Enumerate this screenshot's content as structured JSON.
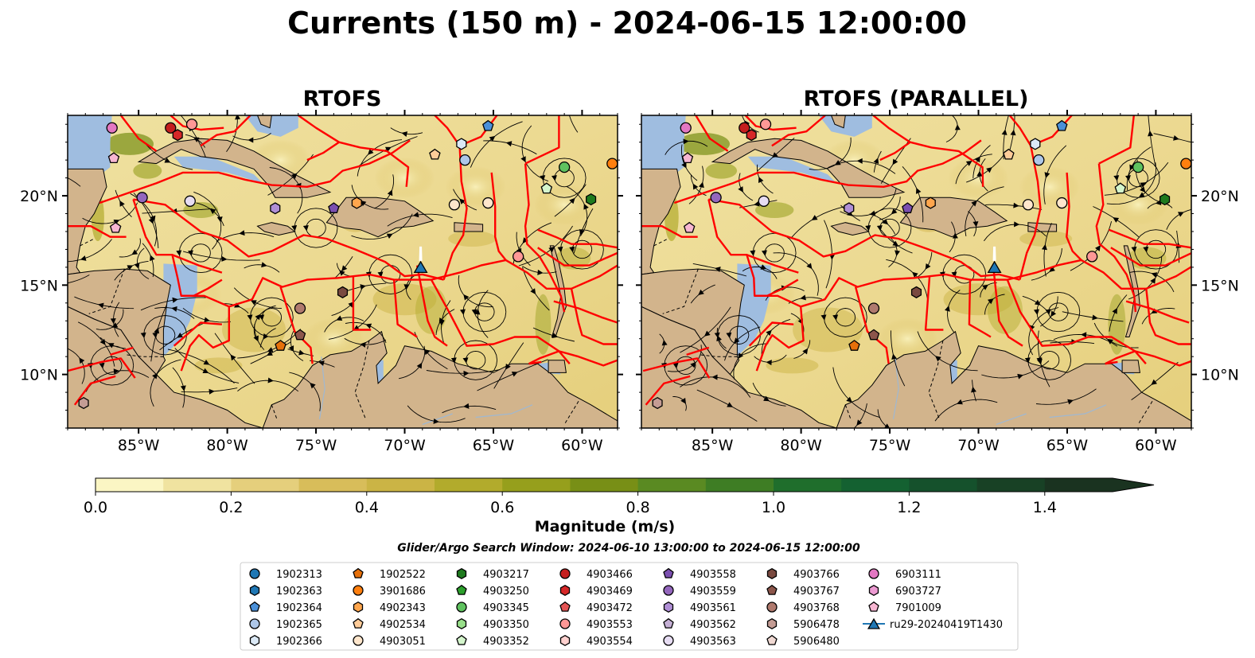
{
  "title": "Currents (150 m) - 2024-06-15 12:00:00",
  "panels": [
    {
      "id": "rtofs",
      "title": "RTOFS"
    },
    {
      "id": "parallel",
      "title": "RTOFS (PARALLEL)"
    }
  ],
  "axes": {
    "xlim": [
      -89,
      -58
    ],
    "ylim": [
      7,
      24.5
    ],
    "x_ticks": [
      {
        "value": -85,
        "label": "85°W"
      },
      {
        "value": -80,
        "label": "80°W"
      },
      {
        "value": -75,
        "label": "75°W"
      },
      {
        "value": -70,
        "label": "70°W"
      },
      {
        "value": -65,
        "label": "65°W"
      },
      {
        "value": -60,
        "label": "60°W"
      }
    ],
    "y_ticks": [
      {
        "value": 10,
        "label": "10°N"
      },
      {
        "value": 15,
        "label": "15°N"
      },
      {
        "value": 20,
        "label": "20°N"
      }
    ]
  },
  "colorbar": {
    "label": "Magnitude (m/s)",
    "min": 0.0,
    "max": 1.5,
    "extend": "max",
    "ticks": [
      "0.0",
      "0.2",
      "0.4",
      "0.6",
      "0.8",
      "1.0",
      "1.2",
      "1.4"
    ],
    "colors": [
      "#fbf6c4",
      "#f0e3a0",
      "#e5cf7c",
      "#d8bd5a",
      "#cbb445",
      "#b2ab2c",
      "#969f1c",
      "#788f16",
      "#5a8a22",
      "#3e7d24",
      "#1f6e2c",
      "#146131",
      "#15512c",
      "#184125",
      "#1a3320"
    ]
  },
  "colors": {
    "land": "#d2b48c",
    "water_shallow": "#9fbde0",
    "boundary": "#ff0000",
    "river": "#9fb8d2",
    "streamline": "#000000"
  },
  "search_window": "Glider/Argo Search Window: 2024-06-10 13:00:00 to 2024-06-15 12:00:00",
  "legend": [
    {
      "label": "1902313",
      "marker": "circle",
      "color": "#1f77b4"
    },
    {
      "label": "1902363",
      "marker": "hexagon",
      "color": "#1f77b4"
    },
    {
      "label": "1902364",
      "marker": "pentagon",
      "color": "#4a90d9"
    },
    {
      "label": "1902365",
      "marker": "circle",
      "color": "#aec7e8"
    },
    {
      "label": "1902366",
      "marker": "hexagon",
      "color": "#dbe9f6"
    },
    {
      "label": "1902522",
      "marker": "pentagon",
      "color": "#e6700a"
    },
    {
      "label": "3901686",
      "marker": "circle",
      "color": "#ff7f0e"
    },
    {
      "label": "4902343",
      "marker": "hexagon",
      "color": "#ffa64d"
    },
    {
      "label": "4902534",
      "marker": "pentagon",
      "color": "#ffcc99"
    },
    {
      "label": "4903051",
      "marker": "circle",
      "color": "#ffe6cc"
    },
    {
      "label": "4903217",
      "marker": "hexagon",
      "color": "#1e7a1e"
    },
    {
      "label": "4903250",
      "marker": "pentagon",
      "color": "#2ca02c"
    },
    {
      "label": "4903345",
      "marker": "circle",
      "color": "#5fc25f"
    },
    {
      "label": "4903350",
      "marker": "hexagon",
      "color": "#98df8a"
    },
    {
      "label": "4903352",
      "marker": "pentagon",
      "color": "#d4f5cc"
    },
    {
      "label": "4903466",
      "marker": "circle",
      "color": "#c41e1e"
    },
    {
      "label": "4903469",
      "marker": "hexagon",
      "color": "#d62728"
    },
    {
      "label": "4903472",
      "marker": "pentagon",
      "color": "#e35454"
    },
    {
      "label": "4903553",
      "marker": "circle",
      "color": "#ff9896"
    },
    {
      "label": "4903554",
      "marker": "hexagon",
      "color": "#ffd1cf"
    },
    {
      "label": "4903558",
      "marker": "pentagon",
      "color": "#7b4fb0"
    },
    {
      "label": "4903559",
      "marker": "circle",
      "color": "#9467bd"
    },
    {
      "label": "4903561",
      "marker": "hexagon",
      "color": "#b08fd6"
    },
    {
      "label": "4903562",
      "marker": "pentagon",
      "color": "#c5b0d5"
    },
    {
      "label": "4903563",
      "marker": "circle",
      "color": "#e6dcf2"
    },
    {
      "label": "4903766",
      "marker": "hexagon",
      "color": "#7a4a40"
    },
    {
      "label": "4903767",
      "marker": "pentagon",
      "color": "#8c564b"
    },
    {
      "label": "4903768",
      "marker": "circle",
      "color": "#b07a6e"
    },
    {
      "label": "5906478",
      "marker": "hexagon",
      "color": "#c49c94"
    },
    {
      "label": "5906480",
      "marker": "pentagon",
      "color": "#f0d9d3"
    },
    {
      "label": "6903111",
      "marker": "circle",
      "color": "#e377c2"
    },
    {
      "label": "6903727",
      "marker": "hexagon",
      "color": "#ec9ad2"
    },
    {
      "label": "7901009",
      "marker": "pentagon",
      "color": "#f7b6d2"
    },
    {
      "label": "ru29-20240419T1430",
      "marker": "triangle",
      "color": "#1f77b4"
    }
  ],
  "chart_data": {
    "type": "scatter",
    "title": "Currents (150 m) - 2024-06-15 12:00:00",
    "xlabel": "",
    "ylabel": "",
    "xlim": [
      -89,
      -58
    ],
    "ylim": [
      7,
      24.5
    ],
    "series": [
      {
        "name": "1902364",
        "points": [
          {
            "x": -65.3,
            "y": 23.9
          }
        ]
      },
      {
        "name": "1902365",
        "points": [
          {
            "x": -66.6,
            "y": 22.0
          }
        ]
      },
      {
        "name": "1902366",
        "points": [
          {
            "x": -66.8,
            "y": 22.9
          }
        ]
      },
      {
        "name": "3901686",
        "points": [
          {
            "x": -58.3,
            "y": 21.8
          }
        ]
      },
      {
        "name": "4902534",
        "points": [
          {
            "x": -68.3,
            "y": 22.3
          }
        ]
      },
      {
        "name": "4903051",
        "points": [
          {
            "x": -65.3,
            "y": 19.6
          }
        ]
      },
      {
        "name": "4902343",
        "points": [
          {
            "x": -72.7,
            "y": 19.6
          }
        ]
      },
      {
        "name": "4903051",
        "points": [
          {
            "x": -67.2,
            "y": 19.5
          }
        ]
      },
      {
        "name": "4903217",
        "points": [
          {
            "x": -59.5,
            "y": 19.8
          }
        ]
      },
      {
        "name": "4903345",
        "points": [
          {
            "x": -61.0,
            "y": 21.6
          }
        ]
      },
      {
        "name": "4903352",
        "points": [
          {
            "x": -62.0,
            "y": 20.4
          }
        ]
      },
      {
        "name": "4903466",
        "points": [
          {
            "x": -83.2,
            "y": 23.8
          }
        ]
      },
      {
        "name": "4903469",
        "points": [
          {
            "x": -82.8,
            "y": 23.4
          }
        ]
      },
      {
        "name": "4903553",
        "points": [
          {
            "x": -63.6,
            "y": 16.6
          },
          {
            "x": -82.0,
            "y": 24.0
          }
        ]
      },
      {
        "name": "4903558",
        "points": [
          {
            "x": -74.0,
            "y": 19.3
          }
        ]
      },
      {
        "name": "4903559",
        "points": [
          {
            "x": -84.8,
            "y": 19.9
          }
        ]
      },
      {
        "name": "4903561",
        "points": [
          {
            "x": -77.3,
            "y": 19.3
          }
        ]
      },
      {
        "name": "4903563",
        "points": [
          {
            "x": -82.1,
            "y": 19.7
          }
        ]
      },
      {
        "name": "4903766",
        "points": [
          {
            "x": -73.5,
            "y": 14.6
          }
        ]
      },
      {
        "name": "4903767",
        "points": [
          {
            "x": -75.9,
            "y": 12.2
          }
        ]
      },
      {
        "name": "4903768",
        "points": [
          {
            "x": -75.9,
            "y": 13.7
          }
        ]
      },
      {
        "name": "1902522",
        "points": [
          {
            "x": -77.0,
            "y": 11.6
          }
        ]
      },
      {
        "name": "5906478",
        "points": [
          {
            "x": -88.1,
            "y": 8.4
          }
        ]
      },
      {
        "name": "6903111",
        "points": [
          {
            "x": -86.5,
            "y": 23.8
          }
        ]
      },
      {
        "name": "7901009",
        "points": [
          {
            "x": -86.3,
            "y": 18.2
          },
          {
            "x": -86.4,
            "y": 22.1
          }
        ]
      },
      {
        "name": "ru29-20240419T1430",
        "points": [
          {
            "x": -69.1,
            "y": 16.0
          }
        ]
      }
    ]
  }
}
